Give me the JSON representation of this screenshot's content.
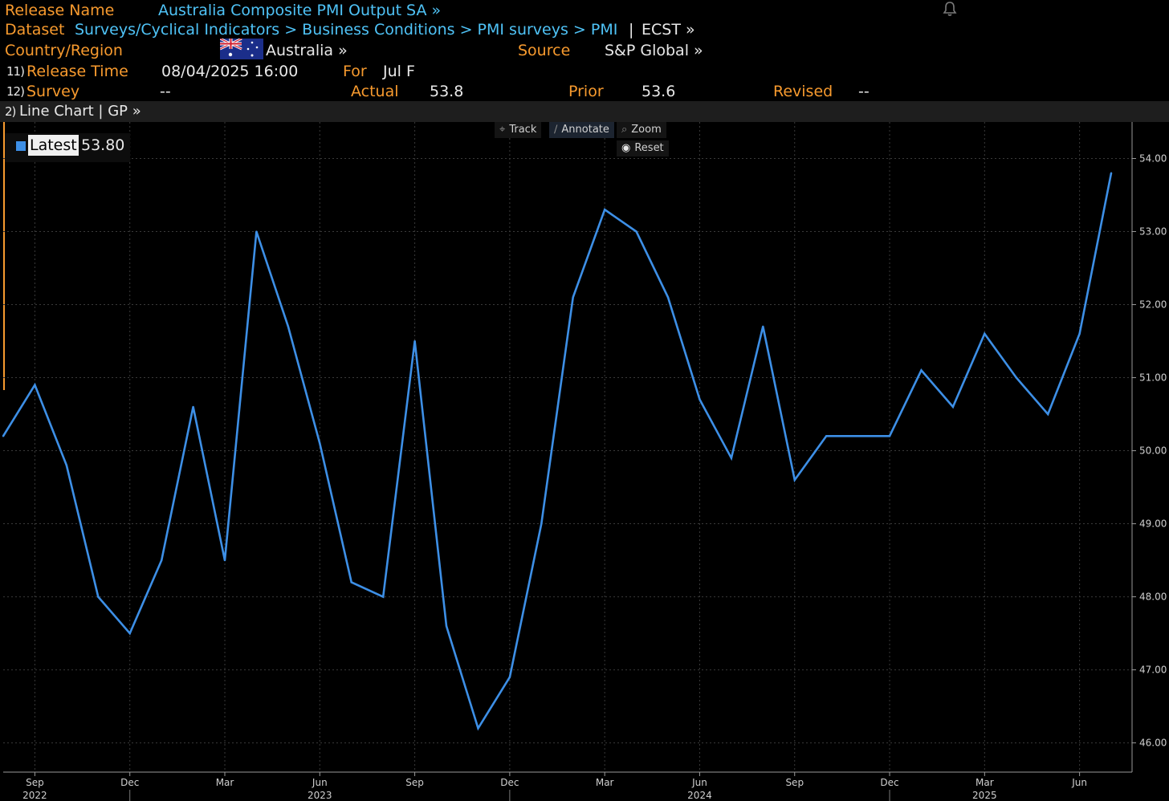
{
  "header": {
    "release_name_label": "Release Name",
    "release_name_value": "Australia Composite PMI Output SA »",
    "dataset_label": "Dataset",
    "dataset_path": "Surveys/Cyclical Indicators > Business Conditions > PMI surveys > PMI",
    "dataset_sep": "|",
    "dataset_code": "ECST »",
    "country_label": "Country/Region",
    "country_value": "Australia »",
    "source_label": "Source",
    "source_value": "S&P Global »",
    "release_time_num": "11)",
    "release_time_label": "Release Time",
    "release_time_value": "08/04/2025 16:00",
    "for_label": "For",
    "for_value": "Jul F",
    "survey_num": "12)",
    "survey_label": "Survey",
    "survey_value": "--",
    "actual_label": "Actual",
    "actual_value": "53.8",
    "prior_label": "Prior",
    "prior_value": "53.6",
    "revised_label": "Revised",
    "revised_value": "--"
  },
  "chart_bar": {
    "num": "2)",
    "title": "Line Chart | GP »"
  },
  "toolbar": {
    "track": "Track",
    "annotate": "Annotate",
    "zoom": "Zoom",
    "reset": "Reset"
  },
  "legend": {
    "label": "Latest",
    "value": "53.80"
  },
  "colors": {
    "line": "#3d8fe6",
    "accent": "#f79a2e",
    "link": "#4fc3f7"
  },
  "icons": [
    "bell-icon",
    "australia-flag-icon",
    "track-icon",
    "annotate-icon",
    "zoom-icon",
    "reset-icon"
  ],
  "chart_data": {
    "type": "line",
    "x": [
      "2022-08",
      "2022-09",
      "2022-10",
      "2022-11",
      "2022-12",
      "2023-01",
      "2023-02",
      "2023-03",
      "2023-04",
      "2023-05",
      "2023-06",
      "2023-07",
      "2023-08",
      "2023-09",
      "2023-10",
      "2023-11",
      "2023-12",
      "2024-01",
      "2024-02",
      "2024-03",
      "2024-04",
      "2024-05",
      "2024-06",
      "2024-07",
      "2024-08",
      "2024-09",
      "2024-10",
      "2024-11",
      "2024-12",
      "2025-01",
      "2025-02",
      "2025-03",
      "2025-04",
      "2025-05",
      "2025-06",
      "2025-07"
    ],
    "series": [
      {
        "values": [
          50.2,
          50.9,
          49.8,
          48.0,
          47.5,
          48.5,
          50.6,
          48.5,
          53.0,
          51.7,
          50.1,
          48.2,
          48.0,
          51.5,
          47.6,
          46.2,
          46.9,
          49.0,
          52.1,
          53.3,
          53.0,
          52.1,
          50.7,
          49.9,
          51.7,
          49.6,
          50.2,
          50.2,
          50.2,
          51.1,
          50.6,
          51.6,
          51.0,
          50.5,
          51.6,
          53.8
        ]
      }
    ],
    "ylim": [
      45.6,
      54.5
    ],
    "yticks": [
      "46.00",
      "47.00",
      "48.00",
      "49.00",
      "50.00",
      "51.00",
      "52.00",
      "53.00",
      "54.00"
    ],
    "xticks": [
      "Sep",
      "Dec",
      "Mar",
      "Jun",
      "Sep",
      "Dec",
      "Mar",
      "Jun",
      "Sep",
      "Dec",
      "Mar",
      "Jun"
    ],
    "xtick_dates": [
      "2022-09",
      "2022-12",
      "2023-03",
      "2023-06",
      "2023-09",
      "2023-12",
      "2024-03",
      "2024-06",
      "2024-09",
      "2024-12",
      "2025-03",
      "2025-06"
    ],
    "years": [
      "2022",
      "2023",
      "2024",
      "2025"
    ],
    "year_dates": [
      "2022-09",
      "2023-06",
      "2024-06",
      "2025-03"
    ],
    "grid": true,
    "legend": "top-left"
  }
}
